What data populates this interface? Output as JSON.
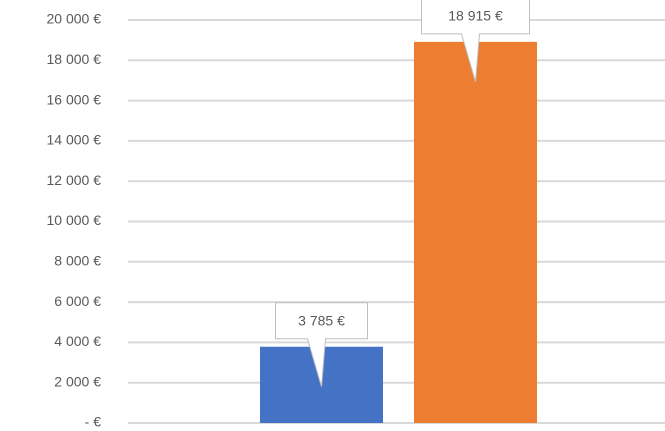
{
  "chart_data": {
    "type": "bar",
    "categories": [
      null,
      null
    ],
    "values": [
      3785,
      18915
    ],
    "value_labels": [
      "3 785 €",
      "18 915 €"
    ],
    "colors": [
      "#4472c4",
      "#ed7d31"
    ],
    "ylim": [
      0,
      20000
    ],
    "yticks": [
      {
        "value": 0,
        "label": "- €"
      },
      {
        "value": 2000,
        "label": "2 000 €"
      },
      {
        "value": 4000,
        "label": "4 000 €"
      },
      {
        "value": 6000,
        "label": "6 000 €"
      },
      {
        "value": 8000,
        "label": "8 000 €"
      },
      {
        "value": 10000,
        "label": "10 000 €"
      },
      {
        "value": 12000,
        "label": "12 000 €"
      },
      {
        "value": 14000,
        "label": "14 000 €"
      },
      {
        "value": 16000,
        "label": "16 000 €"
      },
      {
        "value": 18000,
        "label": "18 000 €"
      },
      {
        "value": 20000,
        "label": "20 000 €"
      }
    ],
    "grid": true
  }
}
